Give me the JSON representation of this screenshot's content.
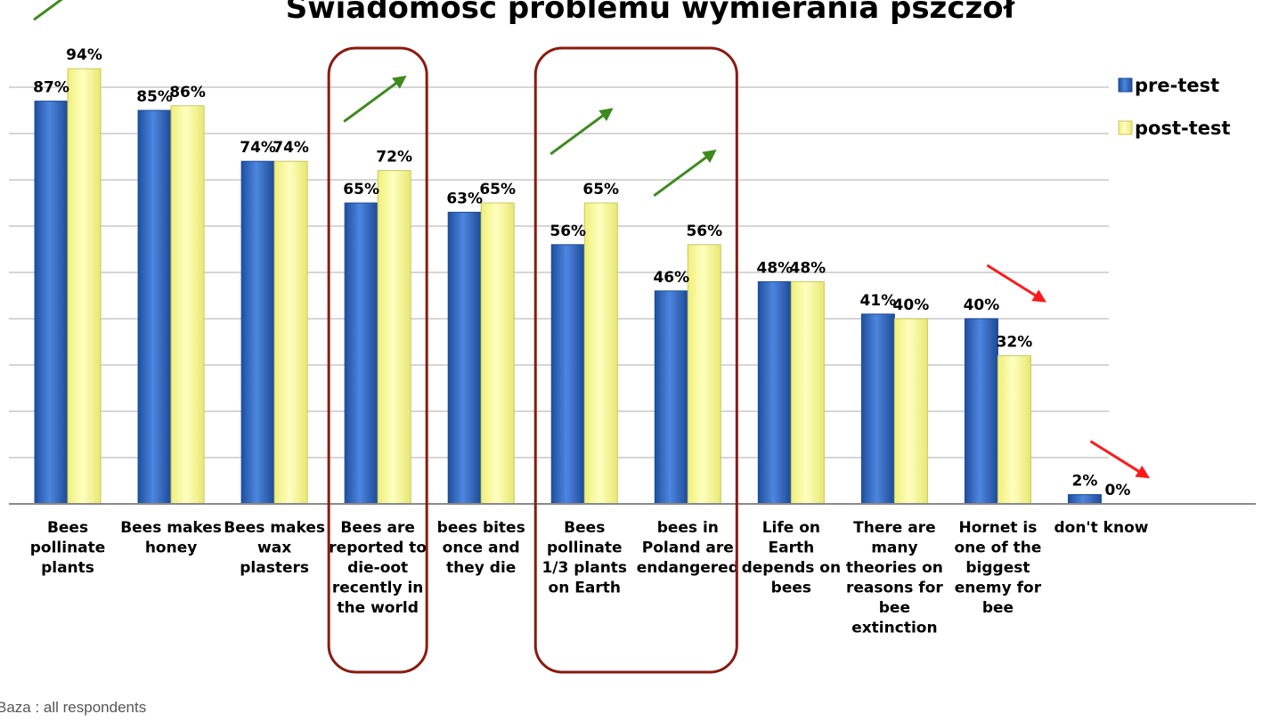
{
  "title": "Świadomość problemu wymierania pszczół",
  "footnote": "Baza : all respondents",
  "colors": {
    "pre_test": "#2e66c2",
    "post_test": "#ffff99",
    "highlight": "#8b1a10",
    "arrow_up": "#3e8a1f",
    "arrow_down": "#ff1a1a"
  },
  "chart_data": {
    "type": "bar",
    "categories": [
      "Bees pollinate plants",
      "Bees makes honey",
      "Bees makes wax plasters",
      "Bees are reported to die-oot recently in the world",
      "bees bites once and they die",
      "Bees pollinate 1/3 plants on Earth",
      "bees in Poland are endangered",
      "Life on Earth depends on bees",
      "There are many theories on reasons for bee extinction",
      "Hornet is one of the biggest enemy for bee",
      "don't know"
    ],
    "category_lines": [
      [
        "Bees",
        "pollinate",
        "plants"
      ],
      [
        "Bees makes",
        "honey"
      ],
      [
        "Bees makes",
        "wax",
        "plasters"
      ],
      [
        "Bees are",
        "reported to",
        "die-oot",
        "recently in",
        "the world"
      ],
      [
        "bees bites",
        "once and",
        "they die"
      ],
      [
        "Bees",
        "pollinate",
        "1/3 plants",
        "on Earth"
      ],
      [
        "bees in",
        "Poland are",
        "endangered"
      ],
      [
        "Life on",
        "Earth",
        "depends on",
        "bees"
      ],
      [
        "There are",
        "many",
        "theories on",
        "reasons for",
        "bee",
        "extinction"
      ],
      [
        "Hornet is",
        "one of the",
        "biggest",
        "enemy for",
        "bee"
      ],
      [
        "don't know"
      ]
    ],
    "series": [
      {
        "name": "pre-test",
        "values": [
          87,
          85,
          74,
          65,
          63,
          56,
          46,
          48,
          41,
          40,
          2
        ],
        "labels": [
          "87%",
          "85%",
          "74%",
          "65%",
          "63%",
          "56%",
          "46%",
          "48%",
          "41%",
          "40%",
          "2%"
        ]
      },
      {
        "name": "post-test",
        "values": [
          94,
          86,
          74,
          72,
          65,
          65,
          56,
          48,
          40,
          32,
          0
        ],
        "labels": [
          "94%",
          "86%",
          "74%",
          "72%",
          "65%",
          "65%",
          "56%",
          "48%",
          "40%",
          "32%",
          "0%"
        ]
      }
    ],
    "ylim": [
      0,
      100
    ],
    "grid": true,
    "legend_position": "top-right",
    "highlighted_categories": [
      3,
      5,
      6
    ],
    "trend_arrows": [
      {
        "category": 0,
        "direction": "up"
      },
      {
        "category": 3,
        "direction": "up"
      },
      {
        "category": 5,
        "direction": "up"
      },
      {
        "category": 6,
        "direction": "up"
      },
      {
        "category": 9,
        "direction": "down"
      },
      {
        "category": 10,
        "direction": "down"
      }
    ]
  }
}
